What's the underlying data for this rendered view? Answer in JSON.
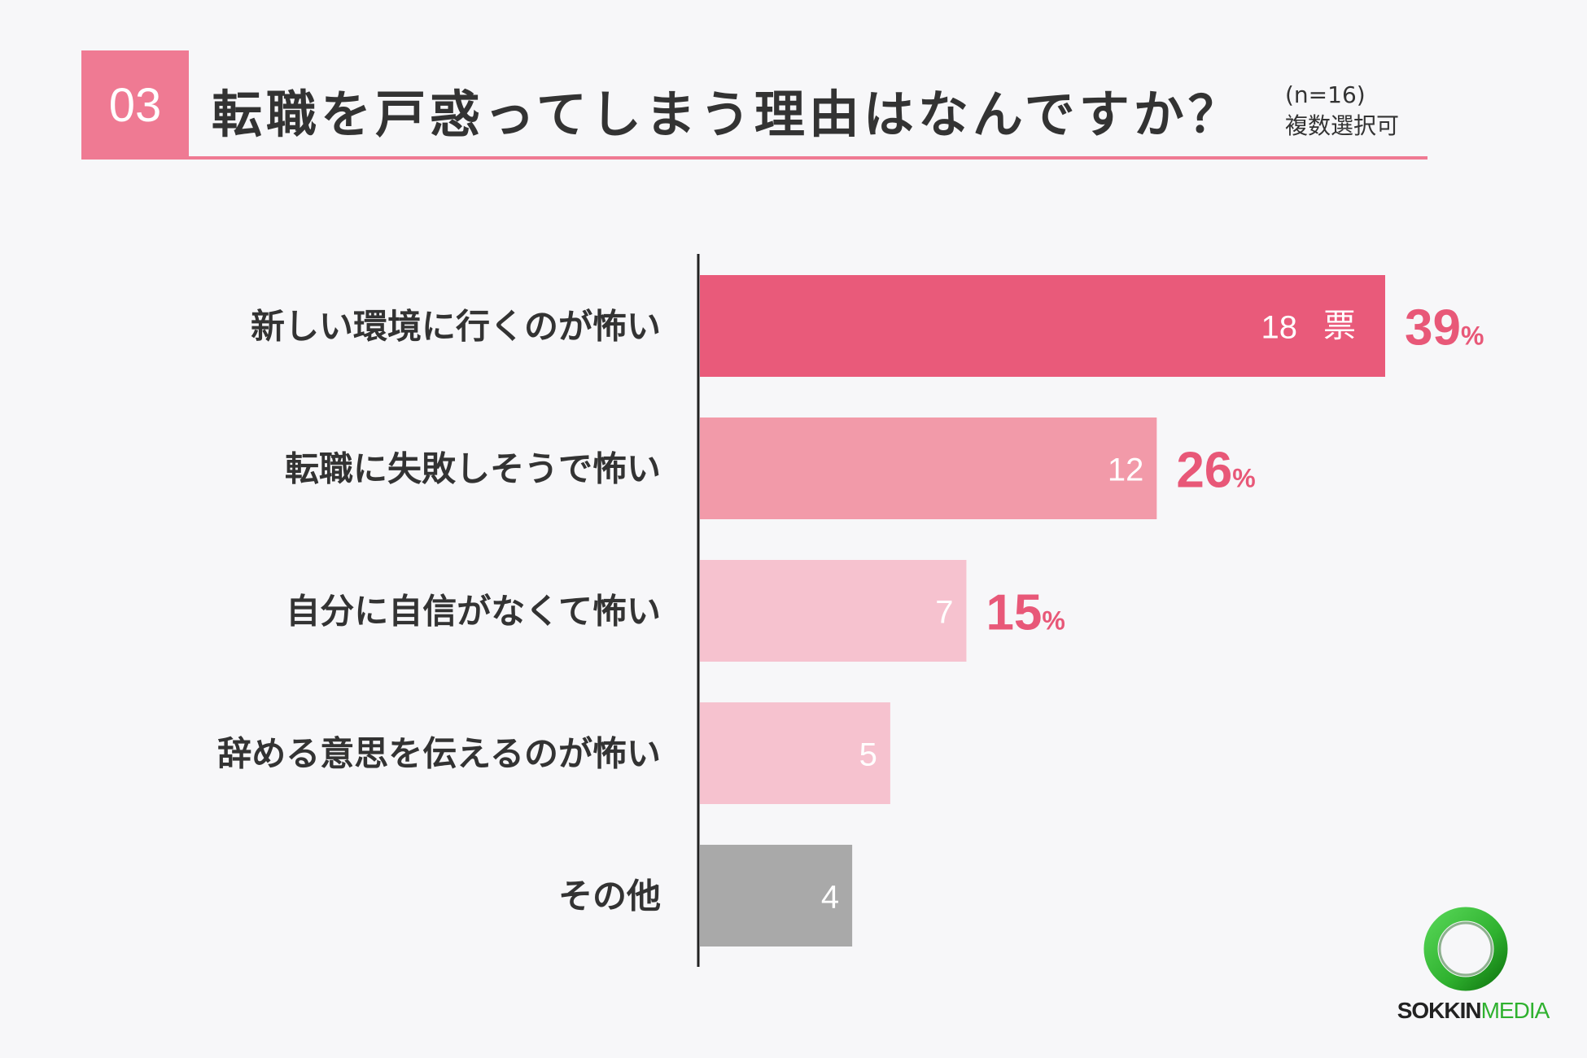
{
  "header": {
    "number": "03",
    "title": "転職を戸惑ってしまう理由はなんですか？",
    "sample_size": "(n=16)",
    "note": "複数選択可"
  },
  "chart_data": {
    "type": "bar",
    "orientation": "horizontal",
    "title": "転職を戸惑ってしまう理由はなんですか？",
    "categories": [
      "新しい環境に行くのが怖い",
      "転職に失敗しそうで怖い",
      "自分に自信がなくて怖い",
      "辞める意思を伝えるのが怖い",
      "その他"
    ],
    "values": [
      18,
      12,
      7,
      5,
      4
    ],
    "value_labels": [
      "18",
      "12",
      "7",
      "5",
      "4"
    ],
    "value_unit": "票",
    "percentages": [
      "39",
      "26",
      "15",
      null,
      null
    ],
    "percent_sign": "%",
    "colors": [
      "#e95a7a",
      "#f29aa9",
      "#f6c2cf",
      "#f6c2cf",
      "#a9a9a9"
    ],
    "xlim": [
      0,
      18
    ],
    "grid": false,
    "legend": "none"
  },
  "logo": {
    "brand_dark": "SOKKIN",
    "brand_green": "MEDIA",
    "ring_color": "#2fb12f"
  }
}
